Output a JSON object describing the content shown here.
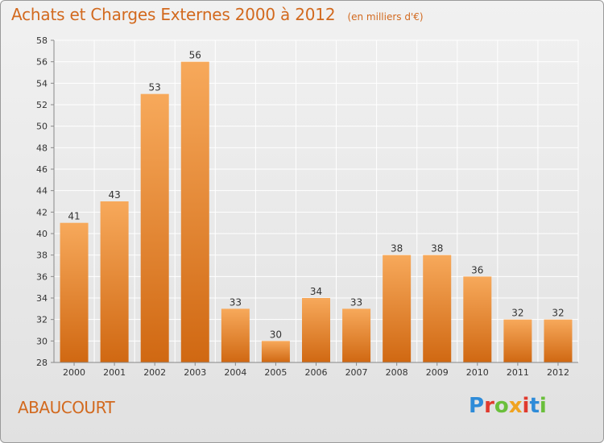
{
  "header": {
    "title": "Achats et Charges Externes 2000 à 2012",
    "subtitle": "(en milliers d'€)"
  },
  "footer": {
    "commune": "ABAUCOURT",
    "logo_text": "Proxiti",
    "logo_colors": [
      "#2e8bd8",
      "#e03a2e",
      "#6abf3b",
      "#f0a320",
      "#e03a2e",
      "#2e8bd8",
      "#6abf3b"
    ]
  },
  "colors": {
    "bar_light": "#f7a95b",
    "bar_dark": "#d06812",
    "title": "#d2691e",
    "grid": "#ffffff",
    "axis": "#888888"
  },
  "chart_data": {
    "type": "bar",
    "categories": [
      "2000",
      "2001",
      "2002",
      "2003",
      "2004",
      "2005",
      "2006",
      "2007",
      "2008",
      "2009",
      "2010",
      "2011",
      "2012"
    ],
    "values": [
      41,
      43,
      53,
      56,
      33,
      30,
      34,
      33,
      38,
      38,
      36,
      32,
      32
    ],
    "title": "Achats et Charges Externes 2000 à 2012",
    "subtitle": "(en milliers d'€)",
    "ylim": [
      28,
      58
    ],
    "yticks": [
      28,
      30,
      32,
      34,
      36,
      38,
      40,
      42,
      44,
      46,
      48,
      50,
      52,
      54,
      56,
      58
    ],
    "grid": true,
    "data_labels": true
  }
}
